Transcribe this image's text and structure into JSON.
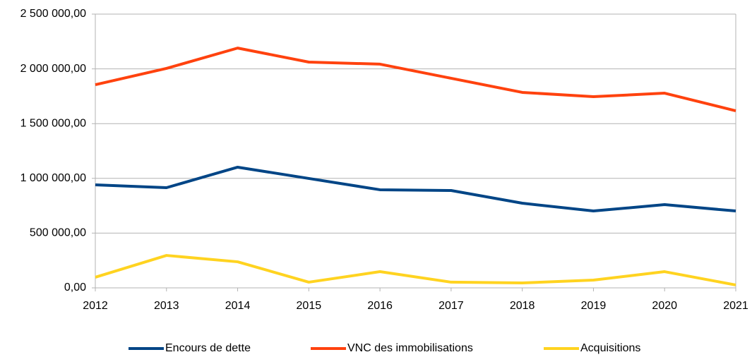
{
  "chart_data": {
    "type": "line",
    "categories": [
      "2012",
      "2013",
      "2014",
      "2015",
      "2016",
      "2017",
      "2018",
      "2019",
      "2020",
      "2021"
    ],
    "series": [
      {
        "name": "Encours de dette",
        "color": "#004586",
        "values": [
          941000,
          915000,
          1102000,
          999000,
          896000,
          889000,
          773000,
          702000,
          760000,
          702000
        ]
      },
      {
        "name": "VNC des immobilisations",
        "color": "#ff420e",
        "values": [
          1855000,
          2004000,
          2190000,
          2062000,
          2043000,
          1914000,
          1785000,
          1746000,
          1778000,
          1617000
        ]
      },
      {
        "name": "Acquisitions",
        "color": "#ffd320",
        "values": [
          97000,
          296000,
          238000,
          52000,
          148000,
          52000,
          45000,
          71000,
          148000,
          26000
        ]
      }
    ],
    "ylim": [
      0,
      2500000
    ],
    "yticks": [
      {
        "value": 0,
        "label": "0,00"
      },
      {
        "value": 500000,
        "label": "500 000,00"
      },
      {
        "value": 1000000,
        "label": "1 000 000,00"
      },
      {
        "value": 1500000,
        "label": "1 500 000,00"
      },
      {
        "value": 2000000,
        "label": "2 000 000,00"
      },
      {
        "value": 2500000,
        "label": "2 500 000,00"
      }
    ],
    "grid": true,
    "legend": "bottom"
  }
}
